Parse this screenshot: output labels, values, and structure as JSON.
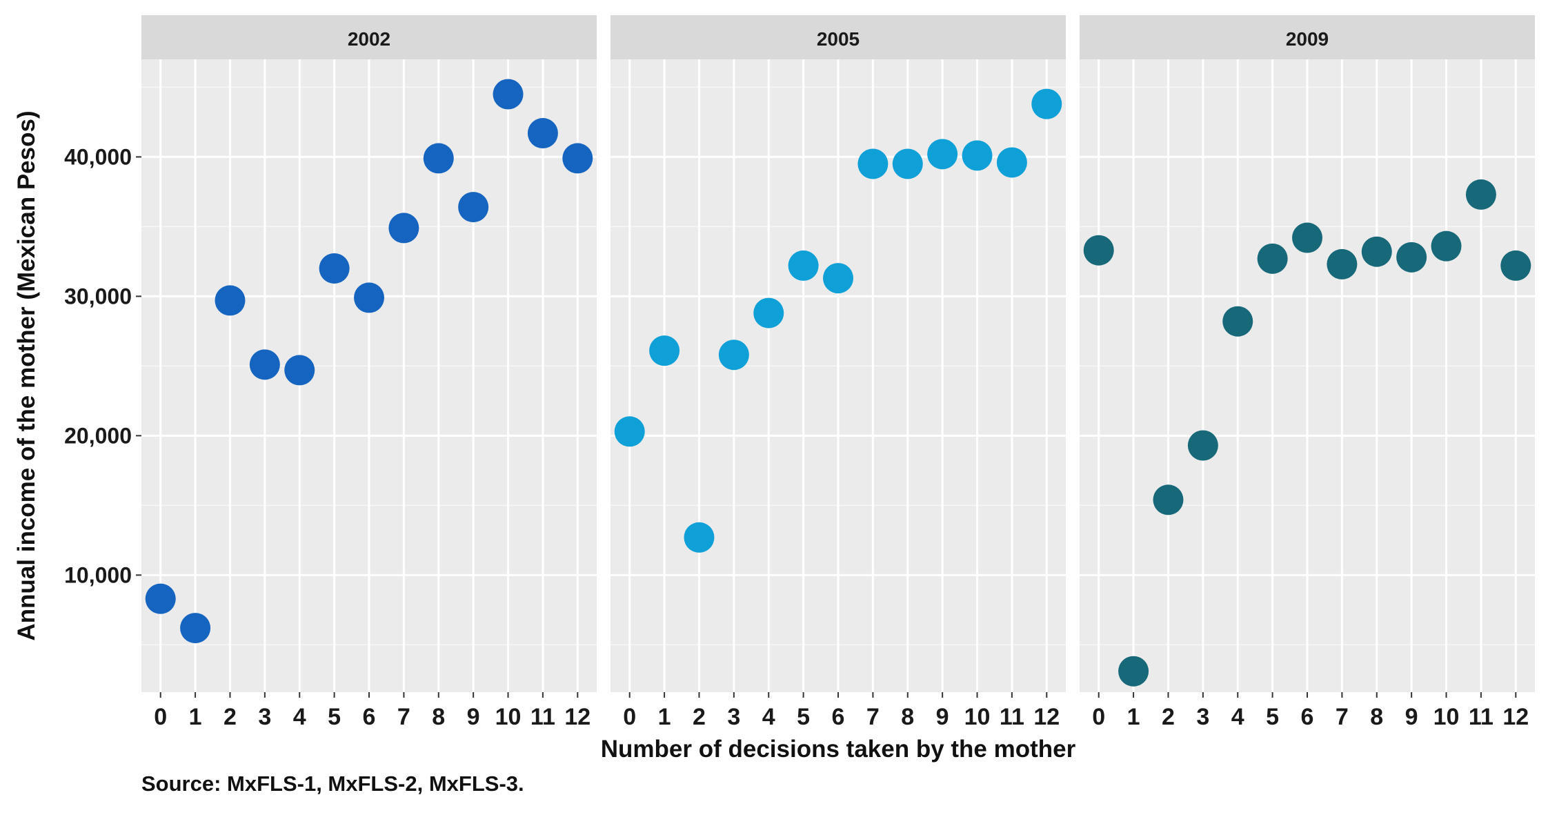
{
  "chart_data": {
    "type": "scatter",
    "xlabel": "Number of decisions taken by the mother",
    "ylabel": "Annual income of the mother (Mexican Pesos)",
    "x": [
      0,
      1,
      2,
      3,
      4,
      5,
      6,
      7,
      8,
      9,
      10,
      11,
      12
    ],
    "x_tick_labels": [
      "0",
      "1",
      "2",
      "3",
      "4",
      "5",
      "6",
      "7",
      "8",
      "9",
      "10",
      "11",
      "12"
    ],
    "y_ticks": [
      10000,
      20000,
      30000,
      40000
    ],
    "y_tick_labels": [
      "10,000",
      "20,000",
      "30,000",
      "40,000"
    ],
    "xlim": [
      -0.55,
      12.55
    ],
    "ylim": [
      1600,
      47000
    ],
    "grid": true,
    "legend": "none",
    "panels": [
      {
        "title": "2002",
        "color": "#1565C0",
        "values": [
          8300,
          6200,
          29700,
          25100,
          24700,
          32000,
          29900,
          34900,
          39900,
          36400,
          44500,
          41700,
          39900
        ]
      },
      {
        "title": "2005",
        "color": "#0FA0D8",
        "values": [
          20300,
          26100,
          12700,
          25800,
          28800,
          32200,
          31300,
          39500,
          39500,
          40200,
          40100,
          39600,
          43800
        ]
      },
      {
        "title": "2009",
        "color": "#17697A",
        "values": [
          33300,
          3100,
          15400,
          19300,
          28200,
          32700,
          34200,
          32300,
          33200,
          32800,
          33600,
          37300,
          32200
        ]
      }
    ]
  },
  "caption": "Source: MxFLS-1, MxFLS-2, MxFLS-3."
}
